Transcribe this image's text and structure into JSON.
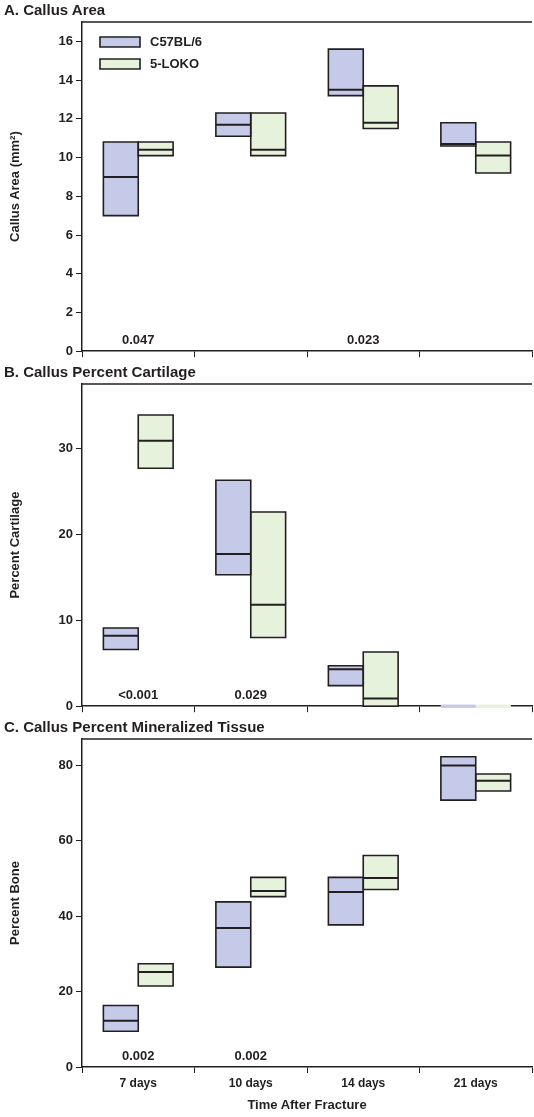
{
  "chart_data": [
    {
      "type": "box",
      "title": "A. Callus Area",
      "ylabel": "Callus Area (mm²)",
      "categories": [
        null,
        null,
        null,
        null
      ],
      "ylim": [
        0,
        17
      ],
      "yticks": [
        0,
        2,
        4,
        6,
        8,
        10,
        12,
        14,
        16
      ],
      "grid": false,
      "legend": "top left",
      "tick_labels": "y",
      "series": [
        {
          "name": "C57BL/6",
          "color": "#c5cae8",
          "boxes": [
            {
              "low": 7.0,
              "q1": 7.0,
              "median": 9.0,
              "q3": 10.8,
              "high": 10.8
            },
            {
              "low": 11.1,
              "q1": 11.1,
              "median": 11.7,
              "q3": 12.3,
              "high": 12.3
            },
            {
              "low": 13.2,
              "q1": 13.2,
              "median": 13.5,
              "q3": 15.6,
              "high": 15.6
            },
            {
              "low": 10.6,
              "q1": 10.6,
              "median": 10.7,
              "q3": 11.8,
              "high": 11.8
            }
          ]
        },
        {
          "name": "5-LOKO",
          "color": "#e6f2dc",
          "boxes": [
            {
              "low": 10.1,
              "q1": 10.1,
              "median": 10.4,
              "q3": 10.8,
              "high": 10.8
            },
            {
              "low": 10.1,
              "q1": 10.1,
              "median": 10.4,
              "q3": 12.3,
              "high": 12.3
            },
            {
              "low": 11.5,
              "q1": 11.5,
              "median": 11.8,
              "q3": 13.7,
              "high": 13.7
            },
            {
              "low": 9.2,
              "q1": 9.2,
              "median": 10.1,
              "q3": 10.8,
              "high": 10.8
            }
          ]
        }
      ],
      "annotations": [
        "0.047",
        "0.023"
      ]
    },
    {
      "type": "box",
      "title": "B. Callus Percent Cartilage",
      "ylabel": "Percent Cartilage",
      "categories": [
        null,
        null,
        null,
        null
      ],
      "ylim": [
        0,
        37.5
      ],
      "yticks": [
        0,
        10,
        20,
        30
      ],
      "grid": false,
      "tick_labels": "y",
      "series": [
        {
          "color": "#c5cae8",
          "boxes": [
            {
              "low": 6.6,
              "q1": 6.6,
              "median": 8.2,
              "q3": 9.1,
              "high": 9.1
            },
            {
              "low": 15.3,
              "q1": 15.3,
              "median": 17.7,
              "q3": 26.3,
              "high": 26.3
            },
            {
              "low": 2.4,
              "q1": 2.4,
              "median": 4.3,
              "q3": 4.7,
              "high": 4.7
            },
            {
              "low": 0,
              "q1": 0,
              "median": 0,
              "q3": 0,
              "high": 0
            }
          ]
        },
        {
          "color": "#e6f2dc",
          "boxes": [
            {
              "low": 27.7,
              "q1": 27.7,
              "median": 30.9,
              "q3": 33.9,
              "high": 33.9
            },
            {
              "low": 8.0,
              "q1": 8.0,
              "median": 11.8,
              "q3": 22.6,
              "high": 22.6
            },
            {
              "low": 0,
              "q1": 0,
              "median": 0.9,
              "q3": 6.3,
              "high": 6.3
            },
            {
              "low": 0,
              "q1": 0,
              "median": 0,
              "q3": 0,
              "high": 0
            }
          ]
        }
      ],
      "annotations": [
        "<0.001",
        "0.029"
      ]
    },
    {
      "type": "box",
      "title": "C. Callus Percent Mineralized Tissue",
      "xlabel": "Time After Fracture",
      "ylabel": "Percent Bone",
      "categories": [
        "7 days",
        "10 days",
        "14 days",
        "21 days"
      ],
      "ylim": [
        0,
        87
      ],
      "yticks": [
        0,
        20,
        40,
        60,
        80
      ],
      "grid": false,
      "series": [
        {
          "color": "#c5cae8",
          "boxes": [
            {
              "low": 9.5,
              "q1": 9.5,
              "median": 12.3,
              "q3": 16.3,
              "high": 16.3
            },
            {
              "low": 26.5,
              "q1": 26.5,
              "median": 36.9,
              "q3": 43.8,
              "high": 43.8
            },
            {
              "low": 37.7,
              "q1": 37.7,
              "median": 46.4,
              "q3": 50.3,
              "high": 50.3
            },
            {
              "low": 70.8,
              "q1": 70.8,
              "median": 80.0,
              "q3": 82.3,
              "high": 82.3
            }
          ]
        },
        {
          "color": "#e6f2dc",
          "boxes": [
            {
              "low": 21.5,
              "q1": 21.5,
              "median": 25.2,
              "q3": 27.4,
              "high": 27.4
            },
            {
              "low": 45.2,
              "q1": 45.2,
              "median": 46.7,
              "q3": 50.3,
              "high": 50.3
            },
            {
              "low": 47.1,
              "q1": 47.1,
              "median": 50.1,
              "q3": 56.1,
              "high": 56.1
            },
            {
              "low": 73.2,
              "q1": 73.2,
              "median": 75.9,
              "q3": 77.7,
              "high": 77.7
            }
          ]
        }
      ],
      "annotations": [
        "0.002",
        "0.002"
      ]
    }
  ]
}
